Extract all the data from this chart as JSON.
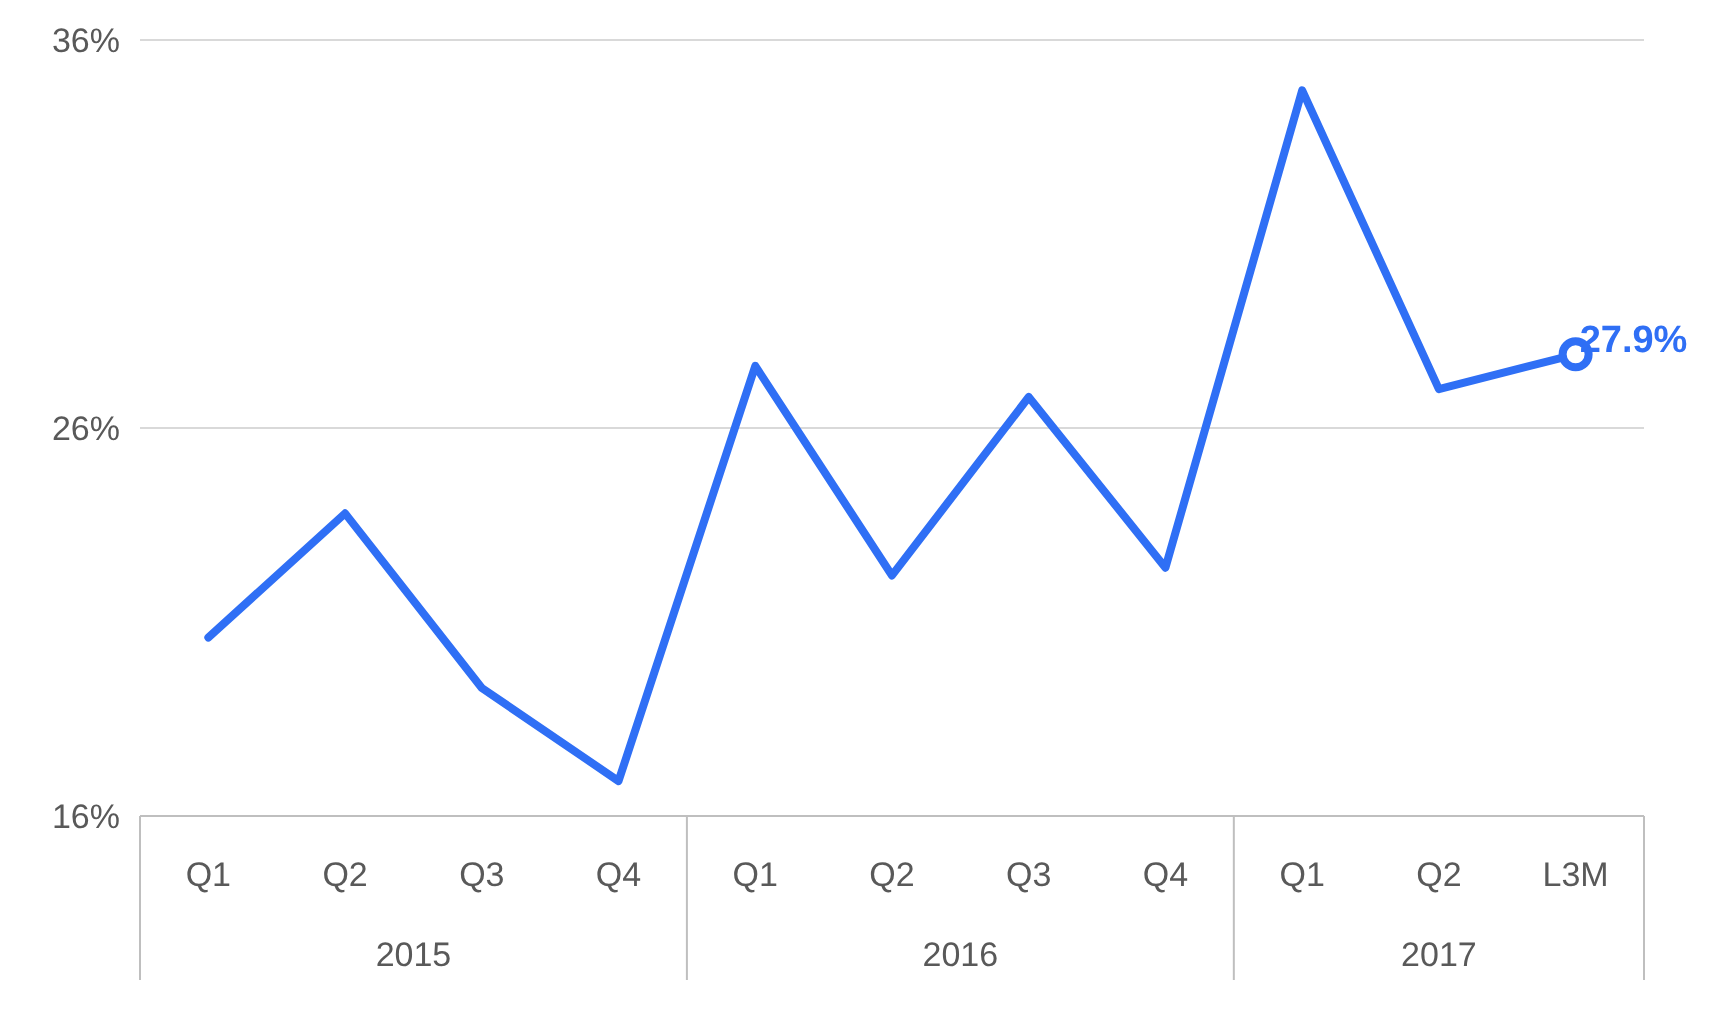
{
  "chart_data": {
    "type": "line",
    "categories": [
      "Q1",
      "Q2",
      "Q3",
      "Q4",
      "Q1",
      "Q2",
      "Q3",
      "Q4",
      "Q1",
      "Q2",
      "L3M"
    ],
    "series": [
      {
        "color": "#2f6ff5",
        "values": [
          20.6,
          23.8,
          19.3,
          16.9,
          27.6,
          22.2,
          26.8,
          22.4,
          34.7,
          27.0,
          27.9
        ],
        "value_labels": [
          null,
          null,
          null,
          null,
          null,
          null,
          null,
          null,
          null,
          null,
          "27.9%"
        ]
      }
    ],
    "ylim": [
      16,
      36
    ],
    "yticks": [
      {
        "value": 16,
        "label": "16%"
      },
      {
        "value": 26,
        "label": "26%"
      },
      {
        "value": 36,
        "label": "36%"
      }
    ],
    "grid": "y",
    "annotations": [
      "2015",
      "2016",
      "2017"
    ]
  }
}
